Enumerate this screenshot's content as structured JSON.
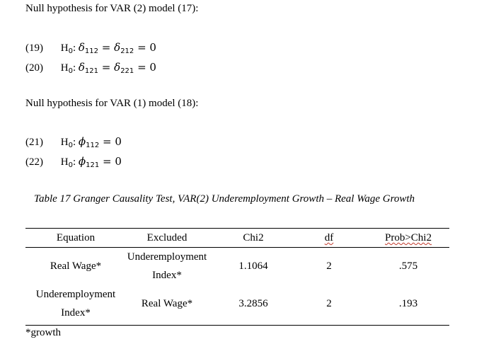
{
  "section1": {
    "title": "Null hypothesis for VAR (2) model (17):",
    "equations": [
      {
        "num": "(19)",
        "prefix": "H",
        "sub0": "0",
        "colon": ":",
        "lhs_sym": "δ",
        "lhs_sub": "112",
        "eq1": "=",
        "rhs_sym": "δ",
        "rhs_sub": "212",
        "eq2": "=",
        "zero": "0"
      },
      {
        "num": "(20)",
        "prefix": "H",
        "sub0": "0",
        "colon": ":",
        "lhs_sym": "δ",
        "lhs_sub": "121",
        "eq1": "=",
        "rhs_sym": "δ",
        "rhs_sub": "221",
        "eq2": "=",
        "zero": "0"
      }
    ]
  },
  "section2": {
    "title": "Null hypothesis for VAR (1) model (18):",
    "equations": [
      {
        "num": "(21)",
        "prefix": "H",
        "sub0": "0",
        "colon": ":",
        "sym": "ϕ",
        "sub": "112",
        "eq": "=",
        "zero": "0"
      },
      {
        "num": "(22)",
        "prefix": "H",
        "sub0": "0",
        "colon": ":",
        "sym": "ϕ",
        "sub": "121",
        "eq": "=",
        "zero": "0"
      }
    ]
  },
  "table": {
    "caption": "Table 17 Granger Causality Test, VAR(2) Underemployment Growth – Real Wage Growth",
    "headers": [
      "Equation",
      "Excluded",
      "Chi2",
      "df",
      "Prob>Chi2"
    ],
    "rows": [
      {
        "equation": [
          "Real Wage*"
        ],
        "excluded": [
          "Underemployment",
          "Index*"
        ],
        "chi2": "1.1064",
        "df": "2",
        "prob": ".575"
      },
      {
        "equation": [
          "Underemployment",
          "Index*"
        ],
        "excluded": [
          "Real Wage*"
        ],
        "chi2": "3.2856",
        "df": "2",
        "prob": ".193"
      }
    ],
    "footnote": "*growth"
  }
}
